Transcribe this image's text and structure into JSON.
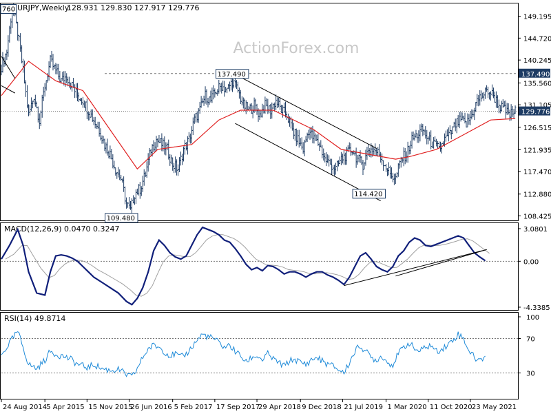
{
  "watermark": "ActionForex.com",
  "chart_data": [
    {
      "type": "bar",
      "title": "EURJPY,Weekly",
      "ohlc_header": [
        "128.931",
        "129.830",
        "127.917",
        "129.776"
      ],
      "y_tick_labels": [
        "149.195",
        "144.720",
        "140.245",
        "135.560",
        "131.105",
        "126.515",
        "121.935",
        "117.470",
        "112.880",
        "108.425"
      ],
      "y_ticks": [
        149.195,
        144.72,
        140.245,
        135.56,
        131.105,
        126.515,
        121.935,
        117.47,
        112.88,
        108.425
      ],
      "ylim": [
        107.5,
        151.8
      ],
      "last_price_label": "129.776",
      "last_price": 129.776,
      "resistance_label": "137.490",
      "resistance": 137.49,
      "annotations": [
        {
          "text": "760",
          "x": 0,
          "y": 149.76
        },
        {
          "text": "137.490",
          "x": 170,
          "y": 137.49
        },
        {
          "text": "109.480",
          "x": 91,
          "y": 109.48
        },
        {
          "text": "114.420",
          "x": 263,
          "y": 114.42
        }
      ],
      "sample_closes": [
        [
          0,
          139
        ],
        [
          4,
          142
        ],
        [
          8,
          151
        ],
        [
          12,
          146
        ],
        [
          16,
          138
        ],
        [
          20,
          129
        ],
        [
          24,
          133
        ],
        [
          28,
          128
        ],
        [
          32,
          135
        ],
        [
          36,
          140
        ],
        [
          40,
          138
        ],
        [
          44,
          136
        ],
        [
          48,
          137
        ],
        [
          52,
          135
        ],
        [
          56,
          133
        ],
        [
          60,
          132
        ],
        [
          64,
          130
        ],
        [
          68,
          128
        ],
        [
          72,
          126
        ],
        [
          76,
          123
        ],
        [
          80,
          121
        ],
        [
          84,
          118
        ],
        [
          88,
          116
        ],
        [
          92,
          111
        ],
        [
          95,
          109.5
        ],
        [
          98,
          113
        ],
        [
          102,
          114
        ],
        [
          106,
          117
        ],
        [
          110,
          122
        ],
        [
          114,
          124
        ],
        [
          118,
          123
        ],
        [
          122,
          122
        ],
        [
          126,
          119
        ],
        [
          130,
          118
        ],
        [
          134,
          122
        ],
        [
          138,
          124
        ],
        [
          142,
          128
        ],
        [
          146,
          130
        ],
        [
          150,
          133
        ],
        [
          154,
          132
        ],
        [
          158,
          134
        ],
        [
          162,
          135
        ],
        [
          166,
          134
        ],
        [
          170,
          136
        ],
        [
          174,
          134
        ],
        [
          178,
          131
        ],
        [
          182,
          130
        ],
        [
          186,
          131
        ],
        [
          190,
          129
        ],
        [
          194,
          131
        ],
        [
          198,
          130
        ],
        [
          202,
          132
        ],
        [
          206,
          130
        ],
        [
          210,
          129
        ],
        [
          214,
          126
        ],
        [
          218,
          124
        ],
        [
          222,
          122
        ],
        [
          226,
          126
        ],
        [
          230,
          124
        ],
        [
          234,
          123
        ],
        [
          238,
          120
        ],
        [
          242,
          119
        ],
        [
          246,
          118
        ],
        [
          250,
          120
        ],
        [
          254,
          121
        ],
        [
          258,
          122
        ],
        [
          262,
          120
        ],
        [
          266,
          119
        ],
        [
          270,
          122
        ],
        [
          274,
          122
        ],
        [
          278,
          121
        ],
        [
          282,
          119
        ],
        [
          286,
          117
        ],
        [
          290,
          116
        ],
        [
          294,
          120
        ],
        [
          298,
          121
        ],
        [
          302,
          124
        ],
        [
          306,
          125
        ],
        [
          310,
          126
        ],
        [
          314,
          124
        ],
        [
          318,
          123
        ],
        [
          322,
          122
        ],
        [
          326,
          124
        ],
        [
          330,
          125
        ],
        [
          334,
          127
        ],
        [
          338,
          128
        ],
        [
          342,
          127
        ],
        [
          346,
          129
        ],
        [
          350,
          132
        ],
        [
          354,
          133
        ],
        [
          358,
          134
        ],
        [
          362,
          133
        ],
        [
          366,
          131
        ],
        [
          370,
          130
        ],
        [
          374,
          129
        ],
        [
          378,
          129.8
        ]
      ],
      "sma_ref": [
        [
          0,
          133
        ],
        [
          20,
          140
        ],
        [
          40,
          136
        ],
        [
          60,
          134
        ],
        [
          80,
          126
        ],
        [
          100,
          118
        ],
        [
          115,
          122
        ],
        [
          140,
          123
        ],
        [
          160,
          128
        ],
        [
          176,
          130
        ],
        [
          200,
          130
        ],
        [
          230,
          126
        ],
        [
          250,
          122
        ],
        [
          270,
          121
        ],
        [
          290,
          120
        ],
        [
          300,
          120.5
        ],
        [
          320,
          122
        ],
        [
          340,
          125
        ],
        [
          360,
          128
        ],
        [
          378,
          128.3
        ]
      ]
    },
    {
      "type": "line",
      "title": "MACD(12,26,9) 0.0470 0.3247",
      "y_tick_labels": [
        "3.0801",
        "0.00",
        "-4.3385"
      ],
      "y_ticks": [
        3.0801,
        0,
        -4.3385
      ],
      "ylim": [
        -4.6,
        3.6
      ],
      "current_value_label": "0.00",
      "macd": [
        [
          0,
          0.2
        ],
        [
          6,
          1.5
        ],
        [
          12,
          3.0
        ],
        [
          16,
          1.5
        ],
        [
          20,
          -1.0
        ],
        [
          26,
          -3.0
        ],
        [
          32,
          -3.2
        ],
        [
          36,
          -1.0
        ],
        [
          40,
          0.5
        ],
        [
          44,
          0.6
        ],
        [
          48,
          0.5
        ],
        [
          52,
          0.3
        ],
        [
          56,
          0.0
        ],
        [
          60,
          -0.5
        ],
        [
          64,
          -1.0
        ],
        [
          68,
          -1.5
        ],
        [
          74,
          -2.0
        ],
        [
          80,
          -2.5
        ],
        [
          86,
          -3.0
        ],
        [
          92,
          -3.8
        ],
        [
          96,
          -4.1
        ],
        [
          100,
          -3.5
        ],
        [
          104,
          -2.5
        ],
        [
          108,
          -1.0
        ],
        [
          112,
          1.0
        ],
        [
          116,
          2.0
        ],
        [
          120,
          1.5
        ],
        [
          124,
          0.8
        ],
        [
          128,
          0.4
        ],
        [
          132,
          0.2
        ],
        [
          136,
          0.5
        ],
        [
          140,
          1.5
        ],
        [
          144,
          2.5
        ],
        [
          148,
          3.2
        ],
        [
          152,
          3.0
        ],
        [
          156,
          2.8
        ],
        [
          160,
          2.5
        ],
        [
          164,
          2.0
        ],
        [
          168,
          1.8
        ],
        [
          172,
          1.2
        ],
        [
          176,
          0.5
        ],
        [
          180,
          -0.3
        ],
        [
          184,
          -0.8
        ],
        [
          188,
          -0.6
        ],
        [
          192,
          -0.9
        ],
        [
          196,
          -0.4
        ],
        [
          200,
          -0.5
        ],
        [
          204,
          -0.8
        ],
        [
          208,
          -1.2
        ],
        [
          212,
          -1.0
        ],
        [
          216,
          -1.0
        ],
        [
          220,
          -1.2
        ],
        [
          224,
          -1.5
        ],
        [
          228,
          -1.2
        ],
        [
          232,
          -1.0
        ],
        [
          236,
          -1.0
        ],
        [
          240,
          -1.3
        ],
        [
          244,
          -1.5
        ],
        [
          248,
          -1.8
        ],
        [
          252,
          -2.2
        ],
        [
          256,
          -1.5
        ],
        [
          260,
          -0.5
        ],
        [
          264,
          0.5
        ],
        [
          268,
          0.8
        ],
        [
          272,
          0.2
        ],
        [
          276,
          -0.5
        ],
        [
          280,
          -0.8
        ],
        [
          284,
          -1.0
        ],
        [
          288,
          -0.5
        ],
        [
          292,
          0.5
        ],
        [
          296,
          1.0
        ],
        [
          300,
          1.8
        ],
        [
          304,
          2.2
        ],
        [
          308,
          2.0
        ],
        [
          312,
          1.5
        ],
        [
          316,
          1.4
        ],
        [
          320,
          1.6
        ],
        [
          324,
          1.8
        ],
        [
          328,
          2.0
        ],
        [
          332,
          2.2
        ],
        [
          336,
          2.4
        ],
        [
          340,
          2.2
        ],
        [
          344,
          1.5
        ],
        [
          348,
          0.8
        ],
        [
          352,
          0.4
        ],
        [
          356,
          0.05
        ]
      ],
      "trendlines": [
        {
          "from": [
            252,
            -2.3
          ],
          "to": [
            357,
            1.1
          ]
        },
        {
          "from": [
            290,
            -1.4
          ],
          "to": [
            357,
            1.1
          ]
        }
      ]
    },
    {
      "type": "line",
      "title": "RSI(14) 49.8714",
      "y_tick_labels": [
        "100",
        "70",
        "30"
      ],
      "y_ticks": [
        100,
        70,
        30
      ],
      "ylim": [
        0,
        100
      ],
      "levels": [
        70,
        30
      ],
      "rsi": [
        [
          0,
          50
        ],
        [
          6,
          65
        ],
        [
          12,
          78
        ],
        [
          16,
          60
        ],
        [
          20,
          40
        ],
        [
          26,
          35
        ],
        [
          32,
          45
        ],
        [
          36,
          55
        ],
        [
          40,
          52
        ],
        [
          44,
          50
        ],
        [
          48,
          48
        ],
        [
          52,
          45
        ],
        [
          56,
          40
        ],
        [
          60,
          38
        ],
        [
          64,
          36
        ],
        [
          68,
          40
        ],
        [
          74,
          35
        ],
        [
          80,
          33
        ],
        [
          86,
          34
        ],
        [
          92,
          28
        ],
        [
          96,
          25
        ],
        [
          100,
          35
        ],
        [
          104,
          48
        ],
        [
          108,
          58
        ],
        [
          112,
          62
        ],
        [
          116,
          60
        ],
        [
          120,
          55
        ],
        [
          124,
          50
        ],
        [
          128,
          52
        ],
        [
          132,
          48
        ],
        [
          136,
          52
        ],
        [
          140,
          60
        ],
        [
          144,
          68
        ],
        [
          148,
          75
        ],
        [
          152,
          72
        ],
        [
          156,
          70
        ],
        [
          160,
          65
        ],
        [
          164,
          60
        ],
        [
          168,
          62
        ],
        [
          172,
          55
        ],
        [
          176,
          50
        ],
        [
          180,
          42
        ],
        [
          184,
          48
        ],
        [
          188,
          50
        ],
        [
          192,
          45
        ],
        [
          196,
          52
        ],
        [
          200,
          46
        ],
        [
          204,
          42
        ],
        [
          208,
          38
        ],
        [
          212,
          44
        ],
        [
          216,
          46
        ],
        [
          220,
          42
        ],
        [
          224,
          40
        ],
        [
          228,
          45
        ],
        [
          232,
          48
        ],
        [
          236,
          44
        ],
        [
          240,
          40
        ],
        [
          244,
          38
        ],
        [
          248,
          34
        ],
        [
          252,
          30
        ],
        [
          256,
          42
        ],
        [
          260,
          55
        ],
        [
          264,
          62
        ],
        [
          268,
          55
        ],
        [
          272,
          48
        ],
        [
          276,
          45
        ],
        [
          280,
          50
        ],
        [
          284,
          42
        ],
        [
          288,
          40
        ],
        [
          292,
          52
        ],
        [
          296,
          60
        ],
        [
          300,
          65
        ],
        [
          304,
          58
        ],
        [
          308,
          55
        ],
        [
          312,
          60
        ],
        [
          316,
          62
        ],
        [
          320,
          55
        ],
        [
          324,
          58
        ],
        [
          328,
          62
        ],
        [
          332,
          68
        ],
        [
          336,
          75
        ],
        [
          340,
          70
        ],
        [
          344,
          56
        ],
        [
          348,
          48
        ],
        [
          352,
          44
        ],
        [
          356,
          50
        ]
      ]
    }
  ],
  "x_axis": {
    "labels": [
      "24 Aug 2014",
      "5 Apr 2015",
      "15 Nov 2015",
      "26 Jun 2016",
      "5 Feb 2017",
      "17 Sep 2017",
      "29 Apr 2018",
      "9 Dec 2018",
      "21 Jul 2019",
      "1 Mar 2020",
      "11 Oct 2020",
      "23 May 2021"
    ],
    "positions": [
      0,
      32,
      63,
      94,
      126,
      157,
      188,
      220,
      251,
      283,
      314,
      345
    ],
    "weeks_total": 380
  },
  "colors": {
    "price_bars": "#1e3c64",
    "sma": "#e02020",
    "macd": "#101f7a",
    "signal": "#a0a0a0",
    "rsi": "#1e8ad8",
    "channel": "#000000",
    "dotted": "#777777",
    "axis_text": "#000000",
    "watermark": "#c8c8c8",
    "label_box_bg": "#ffffff",
    "label_box_border": "#1e3c64",
    "price_box_bg": "#1e3c64",
    "price_box_text": "#ffffff"
  }
}
